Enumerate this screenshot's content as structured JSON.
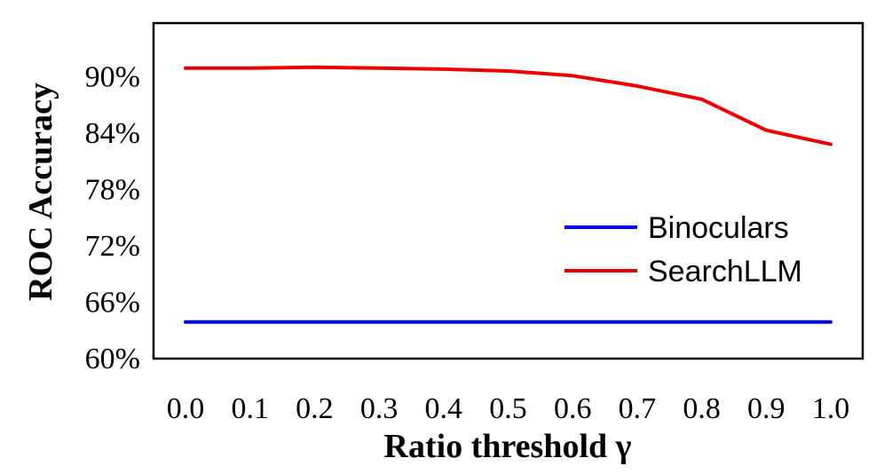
{
  "chart_data": {
    "type": "line",
    "title": "",
    "xlabel": "Ratio threshold γ",
    "ylabel": "ROC Accuracy",
    "x": [
      0.0,
      0.1,
      0.2,
      0.3,
      0.4,
      0.5,
      0.6,
      0.7,
      0.8,
      0.9,
      1.0
    ],
    "x_tick_labels": [
      "0.0",
      "0.1",
      "0.2",
      "0.3",
      "0.4",
      "0.5",
      "0.6",
      "0.7",
      "0.8",
      "0.9",
      "1.0"
    ],
    "y_ticks": [
      60,
      66,
      72,
      78,
      84,
      90
    ],
    "y_tick_labels": [
      "60%",
      "66%",
      "72%",
      "78%",
      "84%",
      "90%"
    ],
    "ylim": [
      60,
      95.7
    ],
    "grid": false,
    "legend_position": "lower-right",
    "series": [
      {
        "name": "Binoculars",
        "color": "#0000ee",
        "values": [
          63.9,
          63.9,
          63.9,
          63.9,
          63.9,
          63.9,
          63.9,
          63.9,
          63.9,
          63.9,
          63.9
        ]
      },
      {
        "name": "SearchLLM",
        "color": "#ee0000",
        "values": [
          90.9,
          90.9,
          91.0,
          90.9,
          90.8,
          90.6,
          90.1,
          89.0,
          87.6,
          84.3,
          82.8
        ]
      }
    ]
  }
}
